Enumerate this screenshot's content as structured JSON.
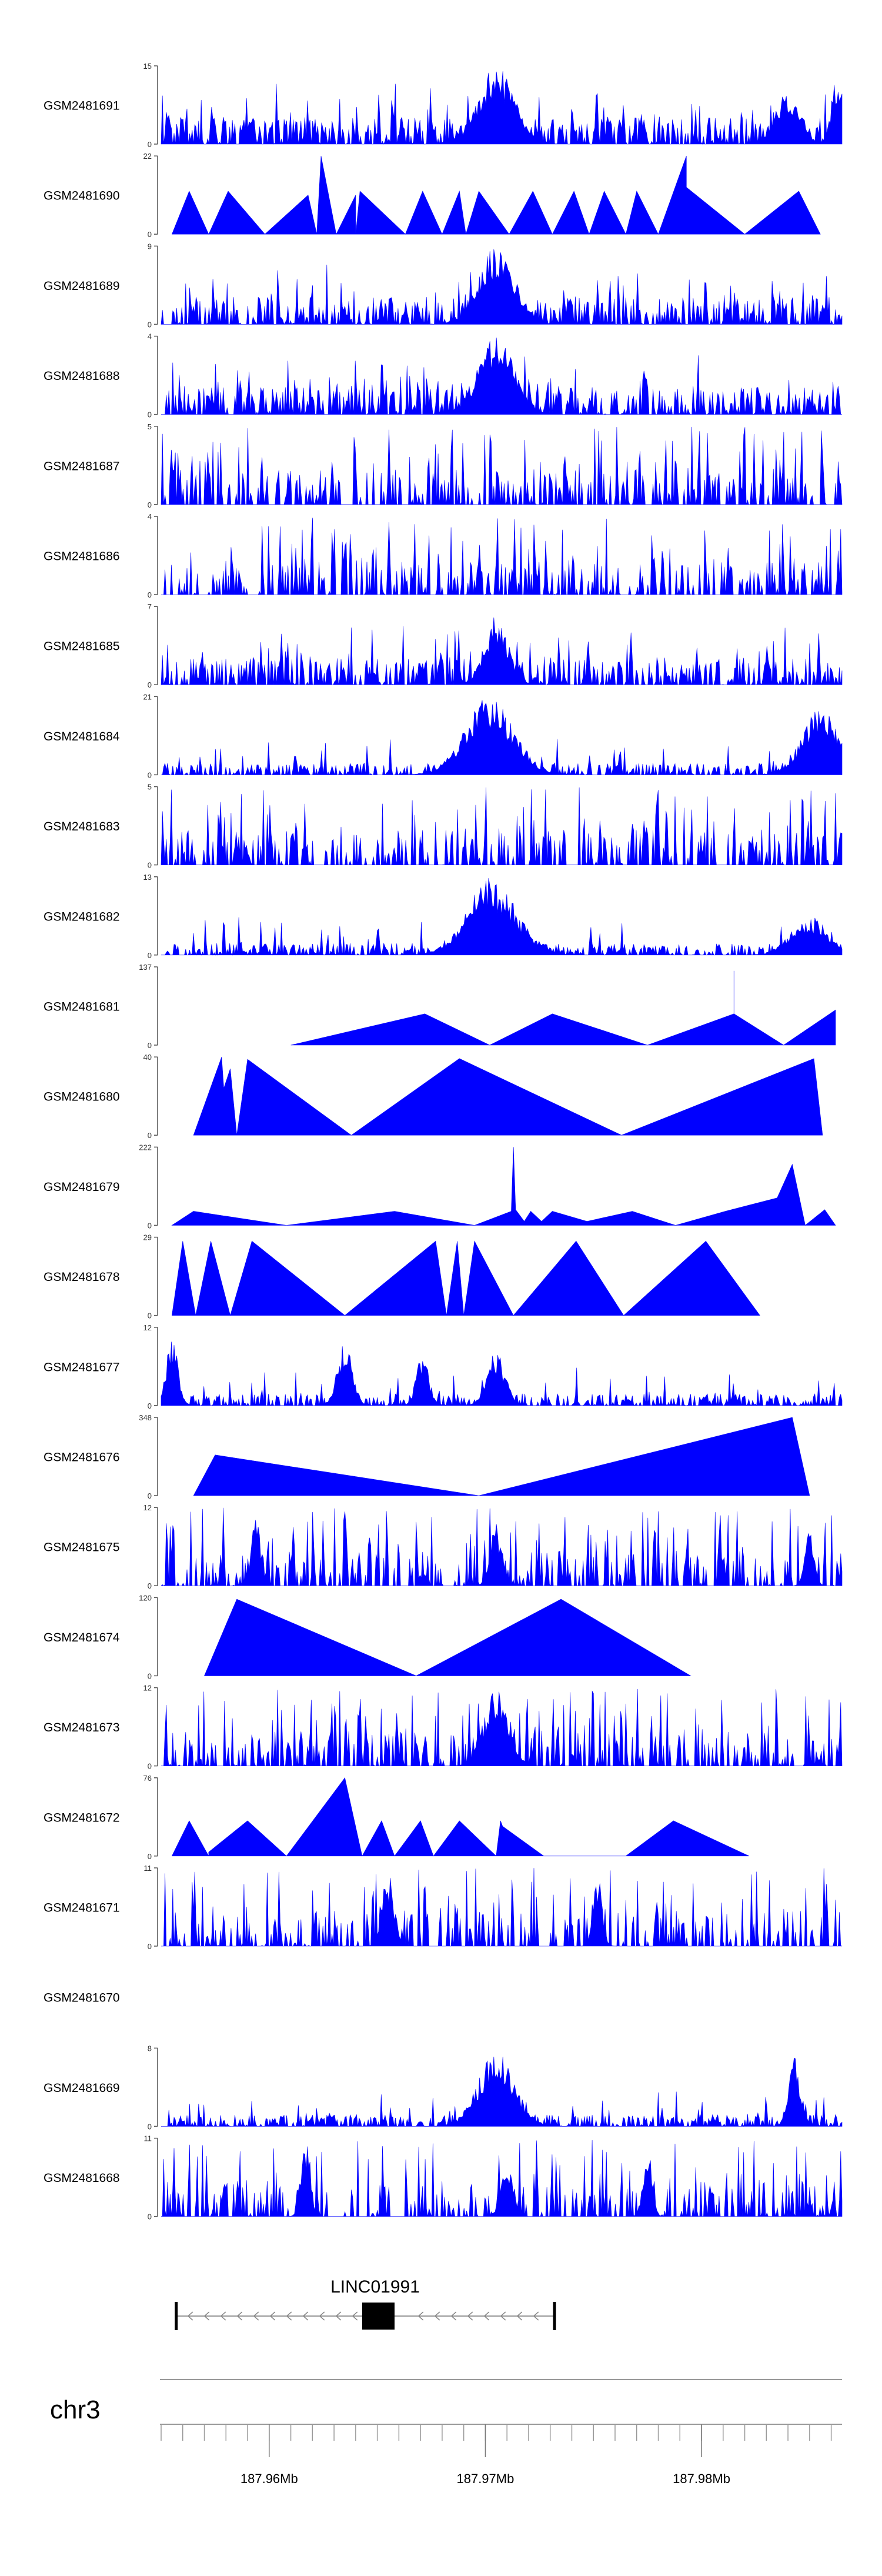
{
  "chart_data": {
    "type": "area",
    "description_color": "#0000FF",
    "x_unit": "Mb",
    "xlim": [
      187.955,
      187.9865
    ],
    "tracks": [
      {
        "label": "GSM2481691",
        "ymax": 15,
        "yticks": [
          0,
          15
        ],
        "profile": "noisy",
        "seed": 11,
        "peaks": [
          [
            187.9705,
            1.0,
            0.0012
          ],
          [
            187.984,
            0.7,
            0.0008
          ],
          [
            187.9863,
            0.9,
            0.0004
          ]
        ]
      },
      {
        "label": "GSM2481690",
        "ymax": 22,
        "yticks": [
          0,
          22
        ],
        "profile": "tri",
        "points": [
          [
            187.9555,
            0
          ],
          [
            187.9563,
            0.55
          ],
          [
            187.9572,
            0
          ],
          [
            187.9581,
            0.55
          ],
          [
            187.9598,
            0
          ],
          [
            187.9618,
            0.5
          ],
          [
            187.9622,
            0
          ],
          [
            187.9624,
            1.0
          ],
          [
            187.9631,
            0
          ],
          [
            187.964,
            0.5
          ],
          [
            187.964,
            0
          ],
          [
            187.9642,
            0.55
          ],
          [
            187.9663,
            0
          ],
          [
            187.9671,
            0.55
          ],
          [
            187.968,
            0
          ],
          [
            187.9688,
            0.55
          ],
          [
            187.9691,
            0
          ],
          [
            187.9697,
            0.55
          ],
          [
            187.9711,
            0
          ],
          [
            187.9722,
            0.55
          ],
          [
            187.9731,
            0
          ],
          [
            187.9741,
            0.55
          ],
          [
            187.9748,
            0
          ],
          [
            187.9755,
            0.55
          ],
          [
            187.9765,
            0
          ],
          [
            187.977,
            0.55
          ],
          [
            187.978,
            0
          ],
          [
            187.9793,
            1.0
          ],
          [
            187.9793,
            0.6
          ],
          [
            187.982,
            0
          ],
          [
            187.9845,
            0.55
          ],
          [
            187.9855,
            0
          ]
        ]
      },
      {
        "label": "GSM2481689",
        "ymax": 9,
        "yticks": [
          0,
          9
        ],
        "profile": "noisy",
        "seed": 23,
        "peaks": [
          [
            187.9705,
            1.0,
            0.0012
          ]
        ]
      },
      {
        "label": "GSM2481688",
        "ymax": 4,
        "yticks": [
          0,
          4
        ],
        "profile": "noisy",
        "seed": 37,
        "peaks": [
          [
            187.9705,
            1.0,
            0.0012
          ]
        ]
      },
      {
        "label": "GSM2481687",
        "ymax": 5,
        "yticks": [
          0,
          5
        ],
        "profile": "spiky",
        "seed": 41,
        "peaks": []
      },
      {
        "label": "GSM2481686",
        "ymax": 4,
        "yticks": [
          0,
          4
        ],
        "profile": "spiky",
        "seed": 53,
        "peaks": []
      },
      {
        "label": "GSM2481685",
        "ymax": 7,
        "yticks": [
          0,
          7
        ],
        "profile": "noisy",
        "seed": 67,
        "peaks": [
          [
            187.9705,
            0.9,
            0.0008
          ]
        ]
      },
      {
        "label": "GSM2481684",
        "ymax": 21,
        "yticks": [
          0,
          21
        ],
        "profile": "low",
        "seed": 71,
        "peaks": [
          [
            187.9702,
            1.0,
            0.0016
          ],
          [
            187.9855,
            0.85,
            0.0012
          ]
        ]
      },
      {
        "label": "GSM2481683",
        "ymax": 5,
        "yticks": [
          0,
          5
        ],
        "profile": "spiky",
        "seed": 83,
        "peaks": []
      },
      {
        "label": "GSM2481682",
        "ymax": 13,
        "yticks": [
          0,
          13
        ],
        "profile": "low",
        "seed": 97,
        "peaks": [
          [
            187.9703,
            1.0,
            0.0016
          ],
          [
            187.985,
            0.5,
            0.0012
          ]
        ]
      },
      {
        "label": "GSM2481681",
        "ymax": 137,
        "yticks": [
          0,
          137
        ],
        "profile": "tri",
        "points": [
          [
            187.961,
            0
          ],
          [
            187.9672,
            0.4
          ],
          [
            187.9702,
            0
          ],
          [
            187.9731,
            0.4
          ],
          [
            187.9775,
            0
          ],
          [
            187.9815,
            0.4
          ],
          [
            187.9815,
            0.95
          ],
          [
            187.9815,
            0.4
          ],
          [
            187.9838,
            0
          ],
          [
            187.9862,
            0.45
          ]
        ]
      },
      {
        "label": "GSM2481680",
        "ymax": 40,
        "yticks": [
          0,
          40
        ],
        "profile": "tri",
        "points": [
          [
            187.9565,
            0
          ],
          [
            187.9578,
            1.0
          ],
          [
            187.9579,
            0.6
          ],
          [
            187.9582,
            0.85
          ],
          [
            187.9585,
            0
          ],
          [
            187.959,
            0.97
          ],
          [
            187.9638,
            0
          ],
          [
            187.9688,
            0.98
          ],
          [
            187.9763,
            0
          ],
          [
            187.9852,
            0.98
          ],
          [
            187.9856,
            0
          ]
        ]
      },
      {
        "label": "GSM2481679",
        "ymax": 222,
        "yticks": [
          0,
          222
        ],
        "profile": "tri",
        "points": [
          [
            187.9555,
            0
          ],
          [
            187.9565,
            0.18
          ],
          [
            187.9608,
            0
          ],
          [
            187.9658,
            0.18
          ],
          [
            187.9695,
            0
          ],
          [
            187.9712,
            0.18
          ],
          [
            187.9713,
            1.0
          ],
          [
            187.9714,
            0.2
          ],
          [
            187.9718,
            0.05
          ],
          [
            187.9721,
            0.18
          ],
          [
            187.9726,
            0.05
          ],
          [
            187.9731,
            0.18
          ],
          [
            187.9747,
            0.05
          ],
          [
            187.9768,
            0.18
          ],
          [
            187.9788,
            0
          ],
          [
            187.9811,
            0.18
          ],
          [
            187.9835,
            0.35
          ],
          [
            187.9842,
            0.78
          ],
          [
            187.9848,
            0
          ],
          [
            187.9857,
            0.2
          ],
          [
            187.9862,
            0
          ]
        ]
      },
      {
        "label": "GSM2481678",
        "ymax": 29,
        "yticks": [
          0,
          29
        ],
        "profile": "tri",
        "points": [
          [
            187.9555,
            0
          ],
          [
            187.956,
            0.95
          ],
          [
            187.9566,
            0
          ],
          [
            187.9573,
            0.95
          ],
          [
            187.9582,
            0
          ],
          [
            187.9592,
            0.95
          ],
          [
            187.9635,
            0
          ],
          [
            187.9677,
            0.95
          ],
          [
            187.9682,
            0
          ],
          [
            187.9687,
            0.95
          ],
          [
            187.969,
            0
          ],
          [
            187.9695,
            0.95
          ],
          [
            187.9713,
            0
          ],
          [
            187.9742,
            0.95
          ],
          [
            187.9764,
            0
          ],
          [
            187.9802,
            0.95
          ],
          [
            187.9827,
            0
          ]
        ]
      },
      {
        "label": "GSM2481677",
        "ymax": 12,
        "yticks": [
          0,
          12
        ],
        "profile": "low",
        "seed": 131,
        "peaks": [
          [
            187.9555,
            0.9,
            0.0004
          ],
          [
            187.9635,
            0.8,
            0.0005
          ],
          [
            187.9671,
            0.7,
            0.0004
          ],
          [
            187.9705,
            0.7,
            0.0006
          ]
        ]
      },
      {
        "label": "GSM2481676",
        "ymax": 348,
        "yticks": [
          0,
          348
        ],
        "profile": "tri",
        "points": [
          [
            187.9565,
            0
          ],
          [
            187.9575,
            0.52
          ],
          [
            187.9697,
            0
          ],
          [
            187.9842,
            1.0
          ],
          [
            187.985,
            0
          ]
        ]
      },
      {
        "label": "GSM2481675",
        "ymax": 12,
        "yticks": [
          0,
          12
        ],
        "profile": "spiky",
        "seed": 149,
        "peaks": [
          [
            187.9594,
            0.95,
            0.0003
          ],
          [
            187.9705,
            0.8,
            0.0004
          ],
          [
            187.985,
            0.7,
            0.0003
          ]
        ]
      },
      {
        "label": "GSM2481674",
        "ymax": 120,
        "yticks": [
          0,
          120
        ],
        "profile": "tri",
        "points": [
          [
            187.957,
            0
          ],
          [
            187.9585,
            0.98
          ],
          [
            187.9668,
            0
          ],
          [
            187.9735,
            0.98
          ],
          [
            187.9795,
            0
          ]
        ]
      },
      {
        "label": "GSM2481673",
        "ymax": 12,
        "yticks": [
          0,
          12
        ],
        "profile": "spiky",
        "seed": 163,
        "peaks": [
          [
            187.9705,
            1.0,
            0.0008
          ]
        ]
      },
      {
        "label": "GSM2481672",
        "ymax": 76,
        "yticks": [
          0,
          76
        ],
        "profile": "tri",
        "points": [
          [
            187.9555,
            0
          ],
          [
            187.9563,
            0.45
          ],
          [
            187.9572,
            0
          ],
          [
            187.9572,
            0.05
          ],
          [
            187.959,
            0.45
          ],
          [
            187.9608,
            0
          ],
          [
            187.9635,
            1.0
          ],
          [
            187.9643,
            0
          ],
          [
            187.9652,
            0.45
          ],
          [
            187.9658,
            0
          ],
          [
            187.967,
            0.45
          ],
          [
            187.9676,
            0
          ],
          [
            187.9688,
            0.45
          ],
          [
            187.9705,
            0
          ],
          [
            187.9707,
            0.45
          ],
          [
            187.9708,
            0.38
          ],
          [
            187.9727,
            0
          ],
          [
            187.9765,
            0
          ],
          [
            187.9787,
            0.45
          ],
          [
            187.9822,
            0
          ]
        ]
      },
      {
        "label": "GSM2481671",
        "ymax": 11,
        "yticks": [
          0,
          11
        ],
        "profile": "spiky",
        "seed": 181,
        "peaks": [
          [
            187.9655,
            0.95,
            0.0004
          ],
          [
            187.9752,
            0.9,
            0.0003
          ]
        ]
      },
      {
        "label": "GSM2481670",
        "ymax": null,
        "yticks": [],
        "profile": "empty"
      },
      {
        "label": "GSM2481669",
        "ymax": 8,
        "yticks": [
          0,
          8
        ],
        "profile": "low",
        "seed": 199,
        "peaks": [
          [
            187.9705,
            0.95,
            0.0012
          ],
          [
            187.9843,
            0.9,
            0.0004
          ]
        ]
      },
      {
        "label": "GSM2481668",
        "ymax": 11,
        "yticks": [
          0,
          11
        ],
        "profile": "spiky",
        "seed": 211,
        "peaks": [
          [
            187.9617,
            0.95,
            0.0003
          ],
          [
            187.971,
            0.7,
            0.0004
          ],
          [
            187.9775,
            0.8,
            0.0003
          ]
        ]
      }
    ],
    "gene": {
      "name": "LINC01991",
      "start": 187.9557,
      "end": 187.9732,
      "exon_start": 187.9643,
      "exon_end": 187.9658,
      "strand": "-"
    },
    "chromosome": "chr3",
    "axis_ticks": [
      187.96,
      187.97,
      187.98
    ],
    "axis_tick_labels": [
      "187.96Mb",
      "187.97Mb",
      "187.98Mb"
    ],
    "minor_tick_step": 0.001
  }
}
